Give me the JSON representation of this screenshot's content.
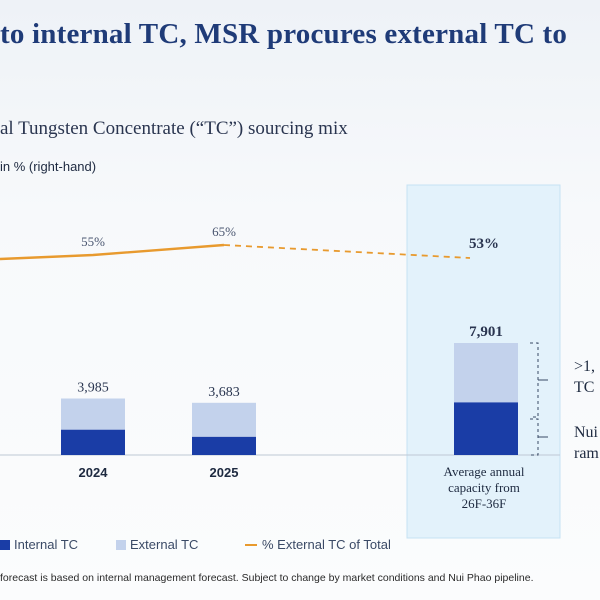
{
  "page": {
    "headline": "to internal TC, MSR procures external TC to",
    "subtitle": "al Tungsten Concentrate (“TC”) sourcing mix",
    "axis_note": "in % (right-hand)",
    "footnote": "forecast is based on internal management forecast. Subject to change by market conditions and Nui Phao pipeline.",
    "side_notes": [
      ">1,",
      "TC",
      "Nui",
      "ram"
    ]
  },
  "legend": {
    "internal": "Internal TC",
    "external": "External TC",
    "pct": "% External TC of Total"
  },
  "colors": {
    "internal": "#1a3da6",
    "external": "#c3d2ec",
    "line": "#e89a2e",
    "highlight": "#e3f2fb",
    "headline": "#1f3b78"
  },
  "chart_data": {
    "type": "bar",
    "stacked": true,
    "categories": [
      "2024",
      "2025",
      "Average annual capacity from 26F-36F"
    ],
    "totals": [
      3985,
      3683,
      7901
    ],
    "total_labels": [
      "3,985",
      "3,683",
      "7,901"
    ],
    "series": [
      {
        "name": "Internal TC",
        "values": [
          1790,
          1290,
          3720
        ]
      },
      {
        "name": "External TC",
        "values": [
          2195,
          2393,
          4181
        ]
      }
    ],
    "line_series": {
      "name": "% External TC of Total",
      "axis": "right",
      "values": [
        55,
        65,
        53
      ],
      "labels": [
        "55%",
        "65%",
        "53%"
      ],
      "projected_from_index": 1
    },
    "highlighted_category": "Average annual capacity from 26F-36F"
  }
}
